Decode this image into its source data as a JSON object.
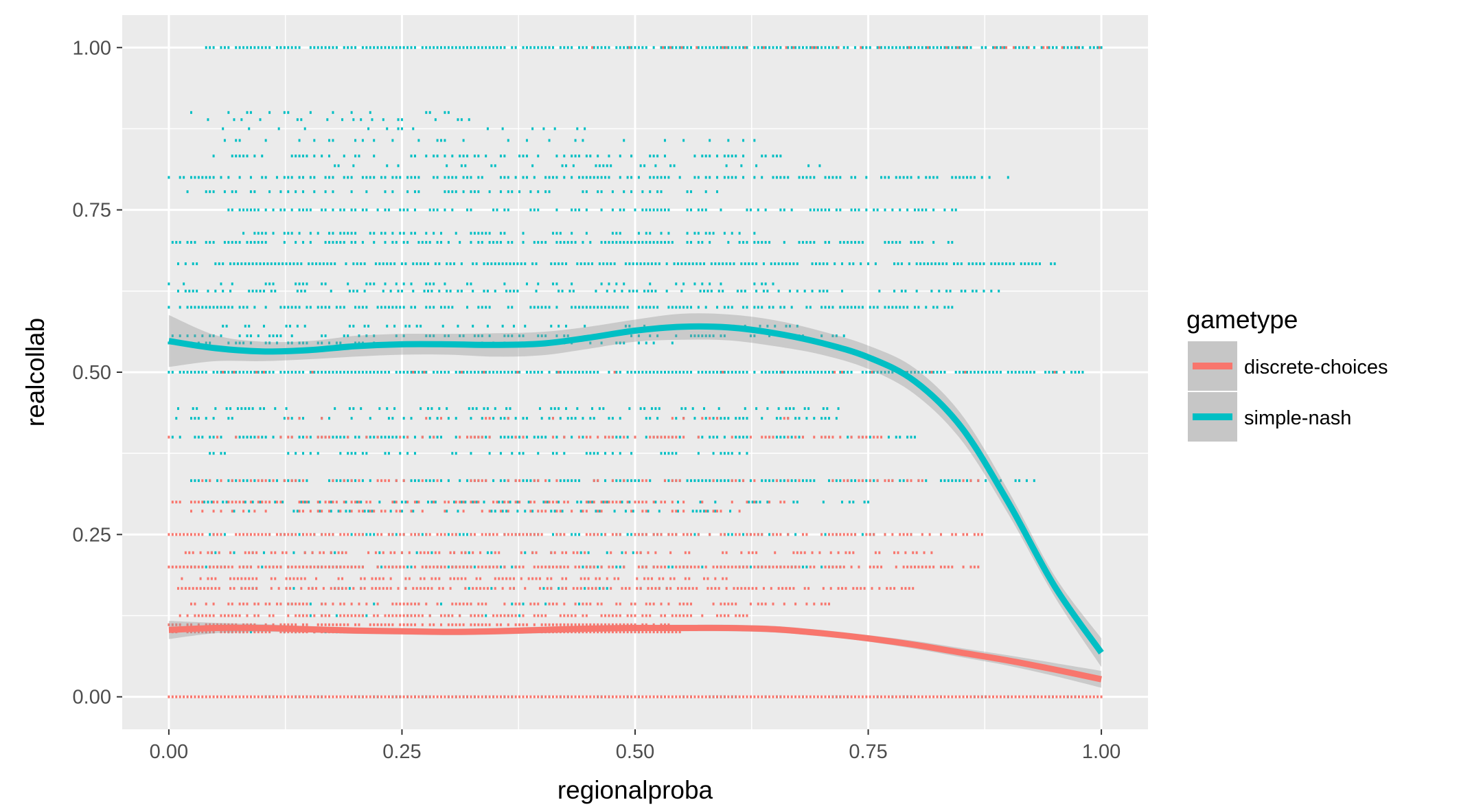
{
  "chart_data": {
    "type": "scatter",
    "xlabel": "regionalproba",
    "ylabel": "realcollab",
    "xlim": [
      -0.05,
      1.05
    ],
    "ylim": [
      -0.05,
      1.05
    ],
    "x_ticks": [
      0.0,
      0.25,
      0.5,
      0.75,
      1.0
    ],
    "x_tick_labels": [
      "0.00",
      "0.25",
      "0.50",
      "0.75",
      "1.00"
    ],
    "y_ticks": [
      0.0,
      0.25,
      0.5,
      0.75,
      1.0
    ],
    "y_tick_labels": [
      "0.00",
      "0.25",
      "0.50",
      "0.75",
      "1.00"
    ],
    "grid": true,
    "legend": {
      "title": "gametype",
      "position": "right",
      "entries": [
        "discrete-choices",
        "simple-nash"
      ]
    },
    "colors": {
      "discrete-choices": "#F8766D",
      "simple-nash": "#00BFC4",
      "panel_bg": "#EBEBEB",
      "grid": "#FFFFFF",
      "ribbon": "#999999"
    },
    "point_levels": {
      "simple-nash": [
        {
          "y": 1.0,
          "density": 0.85,
          "xmin": 0.04,
          "xmax": 1.0
        },
        {
          "y": 0.9,
          "density": 0.2,
          "xmin": 0.0,
          "xmax": 0.33
        },
        {
          "y": 0.889,
          "density": 0.15,
          "xmin": 0.03,
          "xmax": 0.33
        },
        {
          "y": 0.875,
          "density": 0.15,
          "xmin": 0.05,
          "xmax": 0.45
        },
        {
          "y": 0.857,
          "density": 0.25,
          "xmin": 0.06,
          "xmax": 0.63
        },
        {
          "y": 0.833,
          "density": 0.45,
          "xmin": 0.04,
          "xmax": 0.66
        },
        {
          "y": 0.818,
          "density": 0.2,
          "xmin": 0.17,
          "xmax": 0.72
        },
        {
          "y": 0.8,
          "density": 0.6,
          "xmin": 0.0,
          "xmax": 0.9
        },
        {
          "y": 0.778,
          "density": 0.35,
          "xmin": 0.02,
          "xmax": 0.61
        },
        {
          "y": 0.75,
          "density": 0.55,
          "xmin": 0.06,
          "xmax": 0.85
        },
        {
          "y": 0.714,
          "density": 0.4,
          "xmin": 0.08,
          "xmax": 0.64
        },
        {
          "y": 0.7,
          "density": 0.6,
          "xmin": 0.0,
          "xmax": 0.84
        },
        {
          "y": 0.667,
          "density": 0.75,
          "xmin": 0.01,
          "xmax": 0.95
        },
        {
          "y": 0.636,
          "density": 0.3,
          "xmin": 0.0,
          "xmax": 0.65
        },
        {
          "y": 0.625,
          "density": 0.5,
          "xmin": 0.01,
          "xmax": 0.9
        },
        {
          "y": 0.6,
          "density": 0.7,
          "xmin": 0.0,
          "xmax": 0.84
        },
        {
          "y": 0.571,
          "density": 0.35,
          "xmin": 0.05,
          "xmax": 0.68
        },
        {
          "y": 0.556,
          "density": 0.45,
          "xmin": 0.0,
          "xmax": 0.73
        },
        {
          "y": 0.545,
          "density": 0.3,
          "xmin": 0.0,
          "xmax": 0.55
        },
        {
          "y": 0.5,
          "density": 0.9,
          "xmin": 0.0,
          "xmax": 0.98
        },
        {
          "y": 0.444,
          "density": 0.35,
          "xmin": 0.01,
          "xmax": 0.73
        },
        {
          "y": 0.429,
          "density": 0.4,
          "xmin": 0.0,
          "xmax": 0.72
        },
        {
          "y": 0.4,
          "density": 0.6,
          "xmin": 0.0,
          "xmax": 0.82
        },
        {
          "y": 0.375,
          "density": 0.3,
          "xmin": 0.04,
          "xmax": 0.65
        },
        {
          "y": 0.333,
          "density": 0.65,
          "xmin": 0.02,
          "xmax": 0.93
        },
        {
          "y": 0.3,
          "density": 0.35,
          "xmin": 0.03,
          "xmax": 0.75
        },
        {
          "y": 0.286,
          "density": 0.3,
          "xmin": 0.05,
          "xmax": 0.62
        },
        {
          "y": 0.25,
          "density": 0.5,
          "xmin": 0.04,
          "xmax": 0.8
        },
        {
          "y": 0.222,
          "density": 0.25,
          "xmin": 0.03,
          "xmax": 0.55
        },
        {
          "y": 0.2,
          "density": 0.45,
          "xmin": 0.02,
          "xmax": 0.74
        },
        {
          "y": 0.167,
          "density": 0.2,
          "xmin": 0.05,
          "xmax": 0.55
        },
        {
          "y": 0.143,
          "density": 0.15,
          "xmin": 0.08,
          "xmax": 0.48
        },
        {
          "y": 0.125,
          "density": 0.15,
          "xmin": 0.08,
          "xmax": 0.42
        },
        {
          "y": 0.1,
          "density": 0.2,
          "xmin": 0.02,
          "xmax": 0.52
        },
        {
          "y": 0.0,
          "density": 0.35,
          "xmin": 0.1,
          "xmax": 1.0
        }
      ],
      "discrete-choices": [
        {
          "y": 1.0,
          "density": 0.15,
          "xmin": 0.45,
          "xmax": 1.0
        },
        {
          "y": 0.5,
          "density": 0.1,
          "xmin": 0.05,
          "xmax": 0.97
        },
        {
          "y": 0.429,
          "density": 0.1,
          "xmin": 0.08,
          "xmax": 0.67
        },
        {
          "y": 0.4,
          "density": 0.35,
          "xmin": 0.0,
          "xmax": 0.77
        },
        {
          "y": 0.333,
          "density": 0.3,
          "xmin": 0.02,
          "xmax": 0.87
        },
        {
          "y": 0.3,
          "density": 0.45,
          "xmin": 0.0,
          "xmax": 0.67
        },
        {
          "y": 0.286,
          "density": 0.4,
          "xmin": 0.02,
          "xmax": 0.62
        },
        {
          "y": 0.25,
          "density": 0.6,
          "xmin": 0.0,
          "xmax": 0.88
        },
        {
          "y": 0.222,
          "density": 0.5,
          "xmin": 0.01,
          "xmax": 0.83
        },
        {
          "y": 0.2,
          "density": 0.8,
          "xmin": 0.0,
          "xmax": 0.87
        },
        {
          "y": 0.182,
          "density": 0.5,
          "xmin": 0.01,
          "xmax": 0.62
        },
        {
          "y": 0.167,
          "density": 0.65,
          "xmin": 0.01,
          "xmax": 0.8
        },
        {
          "y": 0.143,
          "density": 0.6,
          "xmin": 0.02,
          "xmax": 0.71
        },
        {
          "y": 0.125,
          "density": 0.65,
          "xmin": 0.0,
          "xmax": 0.62
        },
        {
          "y": 0.111,
          "density": 0.75,
          "xmin": 0.0,
          "xmax": 0.54
        },
        {
          "y": 0.1,
          "density": 0.9,
          "xmin": 0.0,
          "xmax": 0.55
        },
        {
          "y": 0.0,
          "density": 1.0,
          "xmin": 0.0,
          "xmax": 1.0
        }
      ]
    },
    "series": [
      {
        "name": "discrete-choices",
        "type": "smooth",
        "color": "#F8766D",
        "x": [
          0.0,
          0.05,
          0.1,
          0.15,
          0.2,
          0.25,
          0.3,
          0.35,
          0.4,
          0.45,
          0.5,
          0.55,
          0.6,
          0.65,
          0.7,
          0.75,
          0.8,
          0.85,
          0.9,
          0.95,
          1.0
        ],
        "y": [
          0.103,
          0.106,
          0.106,
          0.104,
          0.102,
          0.101,
          0.1,
          0.101,
          0.103,
          0.105,
          0.106,
          0.106,
          0.106,
          0.104,
          0.098,
          0.09,
          0.08,
          0.068,
          0.056,
          0.042,
          0.027
        ],
        "ci_halfwidth": [
          0.014,
          0.008,
          0.006,
          0.005,
          0.005,
          0.005,
          0.005,
          0.005,
          0.005,
          0.005,
          0.005,
          0.005,
          0.005,
          0.005,
          0.005,
          0.005,
          0.006,
          0.007,
          0.008,
          0.01,
          0.013
        ]
      },
      {
        "name": "simple-nash",
        "type": "smooth",
        "color": "#00BFC4",
        "x": [
          0.0,
          0.05,
          0.1,
          0.15,
          0.2,
          0.25,
          0.3,
          0.35,
          0.4,
          0.45,
          0.5,
          0.55,
          0.6,
          0.65,
          0.7,
          0.75,
          0.8,
          0.85,
          0.9,
          0.95,
          1.0
        ],
        "y": [
          0.548,
          0.537,
          0.532,
          0.534,
          0.54,
          0.543,
          0.543,
          0.542,
          0.544,
          0.553,
          0.564,
          0.57,
          0.569,
          0.56,
          0.545,
          0.523,
          0.486,
          0.415,
          0.3,
          0.17,
          0.068
        ],
        "ci_halfwidth": [
          0.04,
          0.02,
          0.015,
          0.014,
          0.016,
          0.016,
          0.016,
          0.018,
          0.018,
          0.017,
          0.017,
          0.02,
          0.02,
          0.02,
          0.018,
          0.018,
          0.02,
          0.02,
          0.018,
          0.016,
          0.022
        ]
      }
    ]
  }
}
